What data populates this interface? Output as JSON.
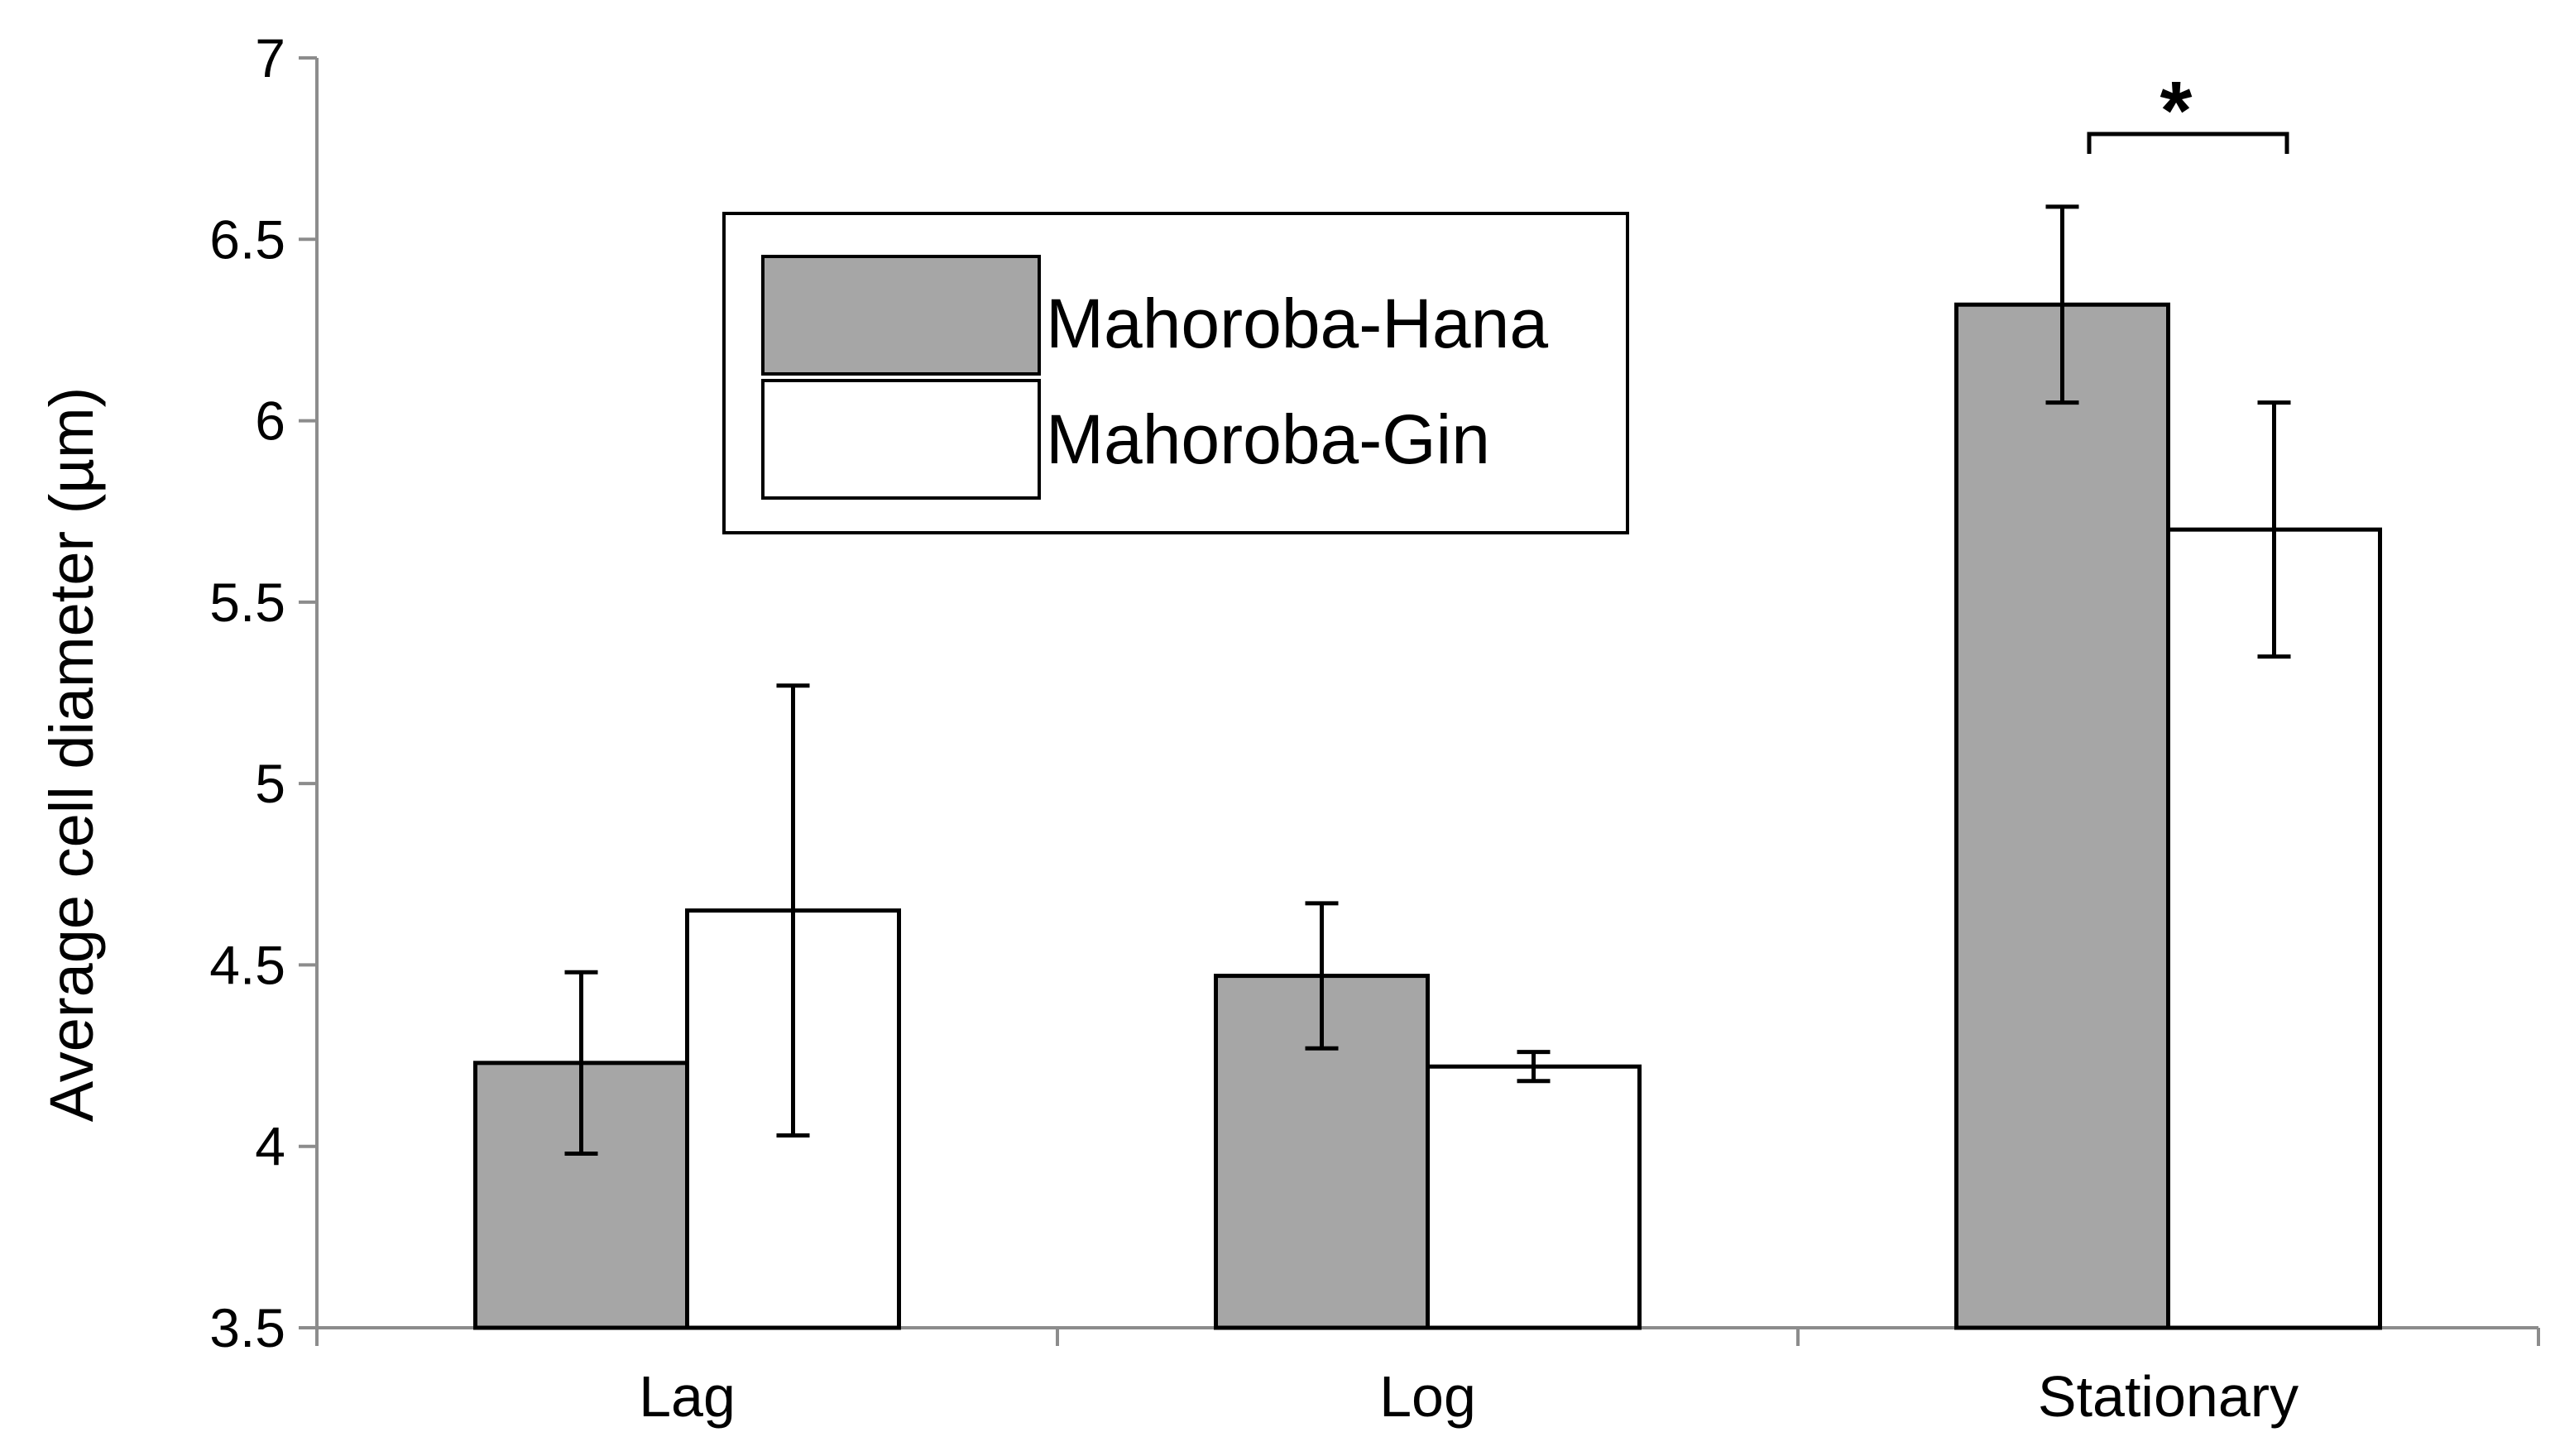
{
  "chart_data": {
    "type": "bar",
    "title": "",
    "xlabel": "",
    "ylabel": "Average cell diameter  (µm)",
    "ylim": [
      3.5,
      7
    ],
    "yticks": [
      "3.5",
      "4",
      "4.5",
      "5",
      "5.5",
      "6",
      "6.5",
      "7"
    ],
    "categories": [
      "Lag",
      "Log",
      "Stationary"
    ],
    "series": [
      {
        "name": "Mahoroba-Hana",
        "color": "#a6a6a6",
        "values": [
          4.23,
          4.47,
          6.32
        ],
        "errors": [
          0.25,
          0.2,
          0.27
        ]
      },
      {
        "name": "Mahoroba-Gin",
        "color": "#ffffff",
        "values": [
          4.65,
          4.22,
          5.7
        ],
        "errors": [
          0.62,
          0.04,
          0.35
        ]
      }
    ],
    "legend": {
      "position": "top-left"
    },
    "annotations": [
      {
        "text": "*",
        "category": "Stationary",
        "type": "significance-bracket"
      }
    ],
    "grid": false,
    "axis_color": "#8c8c8c"
  }
}
